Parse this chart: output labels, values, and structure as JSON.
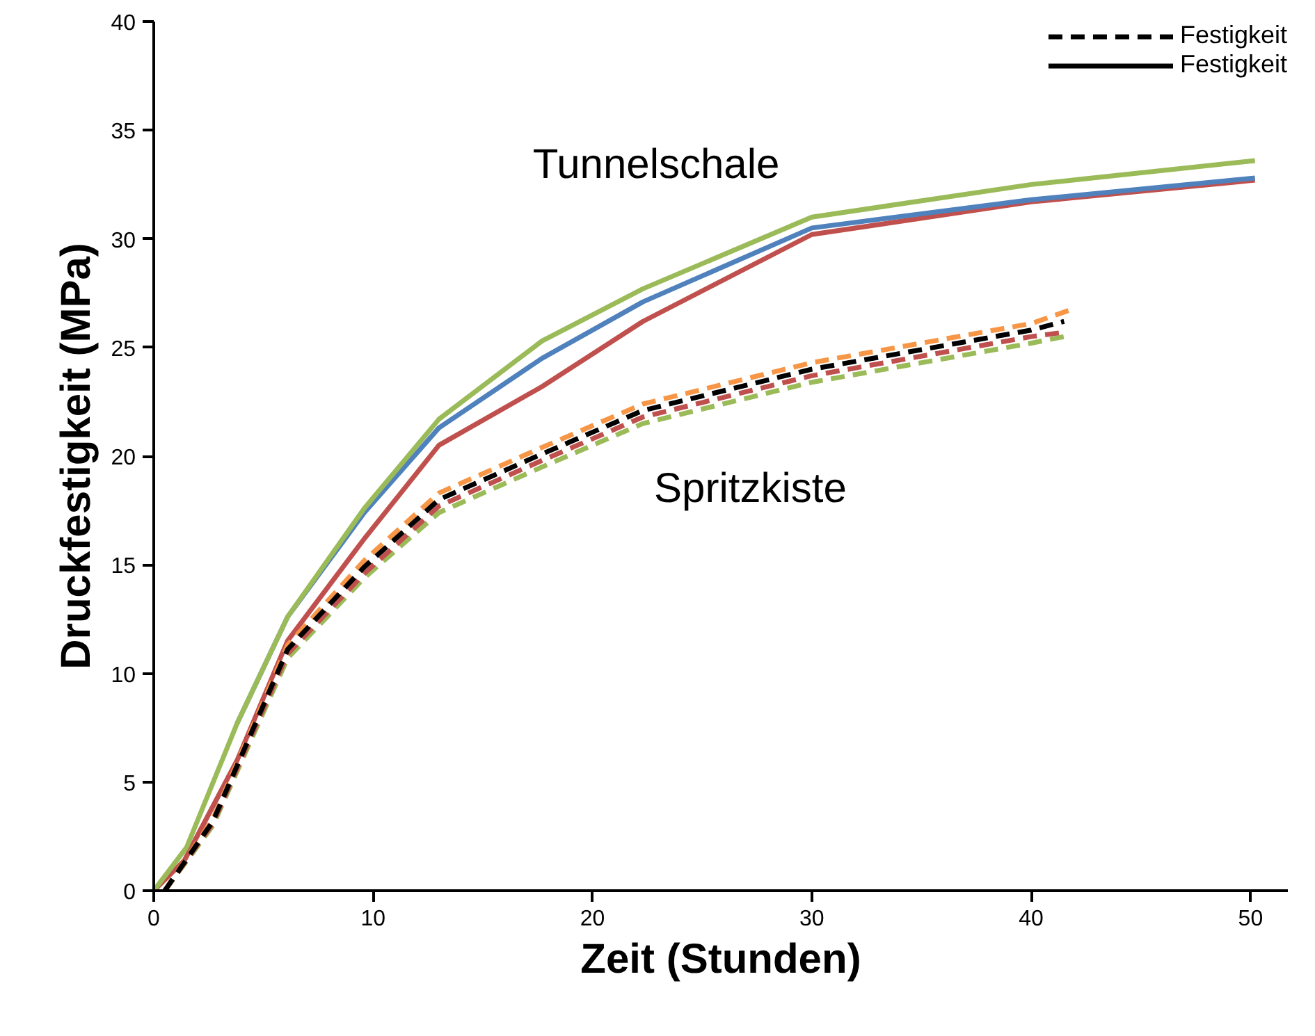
{
  "chart_data": {
    "type": "line",
    "xlabel": "Zeit (Stunden)",
    "ylabel": "Druckfestigkeit (MPa)",
    "xlim": [
      0,
      51.7
    ],
    "ylim": [
      0,
      40
    ],
    "xticks": [
      0,
      10,
      20,
      30,
      40,
      50
    ],
    "yticks": [
      0,
      5,
      10,
      15,
      20,
      25,
      30,
      35,
      40
    ],
    "grid": false,
    "legend": "top right",
    "marker": "none",
    "annotations": [
      "Tunnelschale",
      "Spritzkiste",
      "Festigkeit"
    ],
    "series": [
      {
        "color": "#c0504d",
        "line_style": "solid",
        "x": [
          0,
          1.4,
          3.8,
          6.1,
          9.6,
          13,
          17.7,
          22.3,
          30,
          40,
          50.2
        ],
        "values": [
          0,
          1.4,
          6.0,
          11.5,
          16.2,
          20.5,
          23.2,
          26.2,
          30.2,
          31.7,
          32.7
        ]
      },
      {
        "color": "#4f81bd",
        "line_style": "solid",
        "x": [
          3.8,
          6.1,
          9.6,
          13,
          17.7,
          22.3,
          30,
          40,
          50.2
        ],
        "values": [
          7.7,
          12.6,
          17.4,
          21.3,
          24.5,
          27.1,
          30.5,
          31.8,
          32.8
        ]
      },
      {
        "color": "#9bbb59",
        "line_style": "solid",
        "x": [
          0,
          1.5,
          3.8,
          6.1,
          9.6,
          13,
          17.7,
          22.3,
          30,
          40,
          50.2
        ],
        "values": [
          0,
          2.0,
          7.7,
          12.6,
          17.6,
          21.7,
          25.3,
          27.7,
          31.0,
          32.5,
          33.6
        ]
      },
      {
        "color": "#f79646",
        "line_style": "dashed",
        "x": [
          0.5,
          2.7,
          6.1,
          9.6,
          13,
          17.7,
          22.3,
          30,
          40,
          41.7
        ],
        "values": [
          0,
          3.3,
          11.3,
          15.2,
          18.3,
          20.4,
          22.4,
          24.3,
          26.1,
          26.7
        ]
      },
      {
        "color": "#9bbb59",
        "line_style": "dashed",
        "x": [
          0.5,
          2.7,
          6.1,
          9.6,
          13,
          17.7,
          22.3,
          30,
          40,
          41.5
        ],
        "values": [
          0,
          3.0,
          10.7,
          14.4,
          17.4,
          19.5,
          21.5,
          23.4,
          25.2,
          25.5
        ]
      },
      {
        "color": "#c0504d",
        "line_style": "dashed",
        "x": [
          0.5,
          2.7,
          6.1,
          9.6,
          13,
          17.7,
          22.3,
          30,
          40,
          41.5
        ],
        "values": [
          0,
          3.1,
          10.9,
          14.6,
          17.7,
          19.8,
          21.8,
          23.7,
          25.5,
          25.7
        ]
      },
      {
        "name": "Festigkeit",
        "color": "#000000",
        "line_style": "dashed",
        "x": [
          0.5,
          2.7,
          6.1,
          9.6,
          13,
          17.7,
          22.3,
          30,
          40,
          41.5
        ],
        "values": [
          0,
          3.2,
          11.1,
          14.9,
          18.0,
          20.1,
          22.1,
          24.0,
          25.8,
          26.2
        ]
      }
    ]
  }
}
